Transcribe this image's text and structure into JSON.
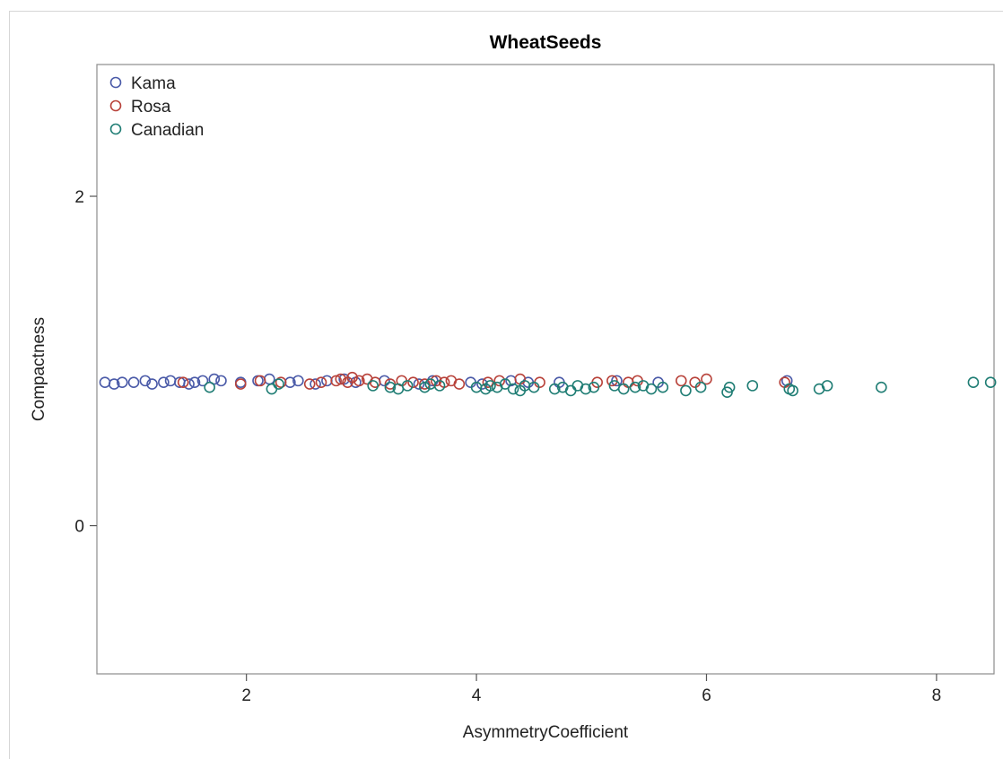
{
  "chart_data": {
    "type": "scatter",
    "title": "WheatSeeds",
    "xlabel": "AsymmetryCoefficient",
    "ylabel": "Compactness",
    "xlim": [
      0.7,
      8.5
    ],
    "ylim": [
      -0.9,
      2.8
    ],
    "xticks": [
      2,
      4,
      6,
      8
    ],
    "yticks": [
      0,
      2
    ],
    "grid": false,
    "legend_position": "top-left",
    "series": [
      {
        "name": "Kama",
        "color": "#4a5aa8",
        "marker": "open-circle",
        "x": [
          0.77,
          0.85,
          0.92,
          1.02,
          1.12,
          1.18,
          1.28,
          1.34,
          1.42,
          1.5,
          1.55,
          1.62,
          1.72,
          1.78,
          1.95,
          2.1,
          2.2,
          2.38,
          2.45,
          2.6,
          2.7,
          2.85,
          2.95,
          3.2,
          3.5,
          3.62,
          3.95,
          4.05,
          4.3,
          4.45,
          4.72,
          5.22,
          5.58,
          6.7
        ],
        "y": [
          0.87,
          0.86,
          0.87,
          0.87,
          0.88,
          0.86,
          0.87,
          0.88,
          0.87,
          0.86,
          0.87,
          0.88,
          0.89,
          0.88,
          0.87,
          0.88,
          0.89,
          0.87,
          0.88,
          0.86,
          0.88,
          0.89,
          0.87,
          0.88,
          0.86,
          0.88,
          0.87,
          0.86,
          0.88,
          0.87,
          0.87,
          0.88,
          0.87,
          0.88
        ]
      },
      {
        "name": "Rosa",
        "color": "#b8423a",
        "marker": "open-circle",
        "x": [
          1.45,
          1.95,
          2.12,
          2.3,
          2.55,
          2.65,
          2.78,
          2.82,
          2.88,
          2.92,
          2.98,
          3.05,
          3.12,
          3.25,
          3.35,
          3.45,
          3.55,
          3.65,
          3.72,
          3.78,
          3.85,
          4.1,
          4.2,
          4.38,
          4.55,
          5.05,
          5.18,
          5.32,
          5.4,
          5.78,
          5.9,
          6.0,
          6.68
        ],
        "y": [
          0.87,
          0.86,
          0.88,
          0.87,
          0.86,
          0.87,
          0.88,
          0.89,
          0.87,
          0.9,
          0.88,
          0.89,
          0.87,
          0.86,
          0.88,
          0.87,
          0.86,
          0.88,
          0.87,
          0.88,
          0.86,
          0.87,
          0.88,
          0.89,
          0.87,
          0.87,
          0.88,
          0.87,
          0.88,
          0.88,
          0.87,
          0.89,
          0.87
        ]
      },
      {
        "name": "Canadian",
        "color": "#1f7d74",
        "marker": "open-circle",
        "x": [
          1.68,
          2.22,
          2.28,
          3.1,
          3.25,
          3.32,
          3.4,
          3.55,
          3.6,
          3.68,
          4.0,
          4.08,
          4.12,
          4.18,
          4.25,
          4.32,
          4.38,
          4.42,
          4.5,
          4.68,
          4.75,
          4.82,
          4.88,
          4.95,
          5.02,
          5.2,
          5.28,
          5.38,
          5.45,
          5.52,
          5.62,
          5.82,
          5.95,
          6.18,
          6.2,
          6.4,
          6.72,
          6.75,
          6.98,
          7.05,
          7.52,
          8.32,
          8.47
        ],
        "y": [
          0.84,
          0.83,
          0.86,
          0.85,
          0.84,
          0.83,
          0.85,
          0.84,
          0.86,
          0.85,
          0.84,
          0.83,
          0.85,
          0.84,
          0.86,
          0.83,
          0.82,
          0.85,
          0.84,
          0.83,
          0.84,
          0.82,
          0.85,
          0.83,
          0.84,
          0.85,
          0.83,
          0.84,
          0.85,
          0.83,
          0.84,
          0.82,
          0.84,
          0.81,
          0.84,
          0.85,
          0.83,
          0.82,
          0.83,
          0.85,
          0.84,
          0.87,
          0.87
        ]
      }
    ]
  }
}
